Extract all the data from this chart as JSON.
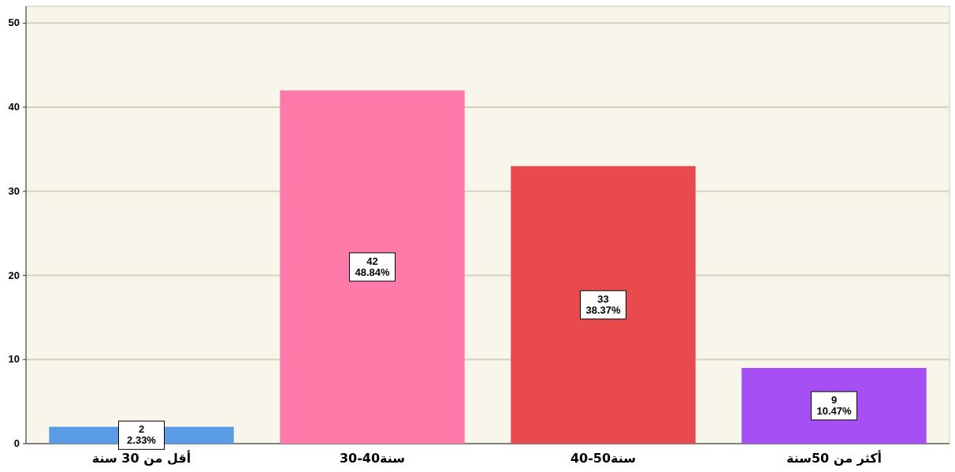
{
  "chart_data": {
    "type": "bar",
    "categories": [
      "أقل من 30 سنة",
      "30-40سنة",
      "40-50سنة",
      "أكثر من 50سنة"
    ],
    "values": [
      2,
      42,
      33,
      9
    ],
    "colors": [
      "#5a9be6",
      "#ff7aa8",
      "#e84a4e",
      "#a64ff2"
    ],
    "value_labels": [
      "2\n2.33%",
      "42\n48.84%",
      "33\n38.37%",
      "9\n10.47%"
    ],
    "ylim": [
      0,
      52
    ],
    "yticks": [
      0,
      10,
      20,
      30,
      40,
      50
    ],
    "grid": "y"
  }
}
